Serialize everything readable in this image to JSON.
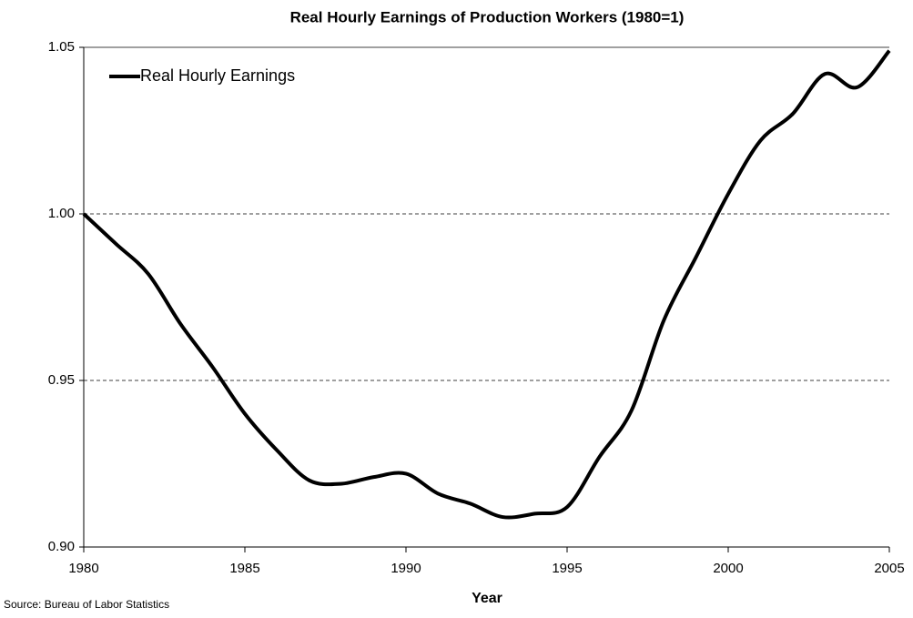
{
  "chart_data": {
    "type": "line",
    "title": "Real Hourly Earnings of Production Workers (1980=1)",
    "x_label": "Year",
    "source": "Source: Bureau of Labor Statistics",
    "x": [
      1980,
      1981,
      1982,
      1983,
      1984,
      1985,
      1986,
      1987,
      1988,
      1989,
      1990,
      1991,
      1992,
      1993,
      1994,
      1995,
      1996,
      1997,
      1998,
      1999,
      2000,
      2001,
      2002,
      2003,
      2004,
      2005
    ],
    "series": [
      {
        "name": "Real Hourly Earnings",
        "color": "#000000",
        "values": [
          1.0,
          0.991,
          0.982,
          0.967,
          0.954,
          0.94,
          0.929,
          0.92,
          0.919,
          0.921,
          0.922,
          0.916,
          0.913,
          0.909,
          0.91,
          0.912,
          0.927,
          0.941,
          0.968,
          0.987,
          1.006,
          1.022,
          1.03,
          1.042,
          1.038,
          1.049
        ]
      }
    ],
    "xlim": [
      1980,
      2005
    ],
    "xticks": [
      1980,
      1985,
      1990,
      1995,
      2000,
      2005
    ],
    "ylim": [
      0.9,
      1.05
    ],
    "yticks": [
      {
        "value": 0.9,
        "label": "0.90"
      },
      0.95,
      {
        "value": 1.0,
        "label": "1.00"
      },
      1.05
    ],
    "grid": true,
    "legend": "top-left"
  }
}
